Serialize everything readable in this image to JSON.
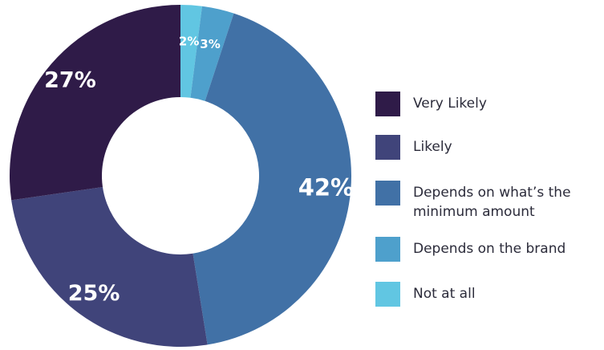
{
  "chart_data": {
    "type": "pie",
    "variant": "donut",
    "categories": [
      "Very Likely",
      "Likely",
      "Depends on what’s the minimum amount",
      "Depends on the brand",
      "Not at all"
    ],
    "values": [
      27,
      25,
      42,
      3,
      2
    ],
    "value_labels": [
      "27%",
      "25%",
      "42%",
      "3%",
      "2%"
    ],
    "legend_placement": "right",
    "colors": [
      "#2f1b48",
      "#40447a",
      "#4171a6",
      "#4ea0cc",
      "#61c6e2"
    ]
  }
}
